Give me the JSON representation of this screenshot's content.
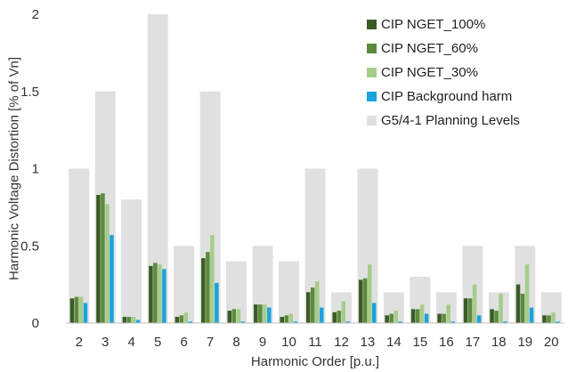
{
  "chart_data": {
    "type": "bar",
    "title": "",
    "xlabel": "Harmonic Order [p.u.]",
    "ylabel": "Harmonic Voltage Distortion [% of Vn]",
    "ylim": [
      0,
      2
    ],
    "yticks": [
      "0",
      "0.5",
      "1",
      "1.5",
      "2"
    ],
    "grid": false,
    "legend_position": "top-right",
    "categories": [
      "2",
      "3",
      "4",
      "5",
      "6",
      "7",
      "8",
      "9",
      "10",
      "11",
      "12",
      "13",
      "14",
      "15",
      "16",
      "17",
      "18",
      "19",
      "20"
    ],
    "background_series": {
      "name": "G5/4-1 Planning Levels",
      "color": "#e0e0e0",
      "values": [
        1.0,
        1.5,
        0.8,
        2.0,
        0.5,
        1.5,
        0.4,
        0.5,
        0.4,
        1.0,
        0.2,
        1.0,
        0.2,
        0.3,
        0.2,
        0.5,
        0.2,
        0.5,
        0.2
      ]
    },
    "series": [
      {
        "name": "CIP NGET_100%",
        "color": "#3b5b25",
        "values": [
          0.16,
          0.83,
          0.04,
          0.37,
          0.04,
          0.42,
          0.08,
          0.12,
          0.04,
          0.2,
          0.07,
          0.28,
          0.05,
          0.09,
          0.06,
          0.16,
          0.09,
          0.25,
          0.05
        ]
      },
      {
        "name": "CIP NGET_60%",
        "color": "#5d8a3c",
        "values": [
          0.17,
          0.84,
          0.04,
          0.39,
          0.05,
          0.46,
          0.09,
          0.12,
          0.05,
          0.23,
          0.08,
          0.29,
          0.06,
          0.09,
          0.06,
          0.16,
          0.08,
          0.19,
          0.05
        ]
      },
      {
        "name": "CIP NGET_30%",
        "color": "#a6cc8c",
        "values": [
          0.17,
          0.77,
          0.04,
          0.38,
          0.07,
          0.57,
          0.09,
          0.12,
          0.06,
          0.27,
          0.14,
          0.38,
          0.08,
          0.12,
          0.12,
          0.25,
          0.19,
          0.38,
          0.07
        ]
      },
      {
        "name": "CIP Background harm",
        "color": "#1aa3dc",
        "values": [
          0.13,
          0.57,
          0.02,
          0.35,
          0.01,
          0.26,
          0.01,
          0.1,
          0.01,
          0.1,
          0.01,
          0.13,
          0.01,
          0.06,
          0.01,
          0.05,
          0.01,
          0.1,
          0.01
        ]
      }
    ],
    "legend_order": [
      "CIP NGET_100%",
      "CIP NGET_60%",
      "CIP NGET_30%",
      "CIP Background harm",
      "G5/4-1 Planning Levels"
    ]
  }
}
